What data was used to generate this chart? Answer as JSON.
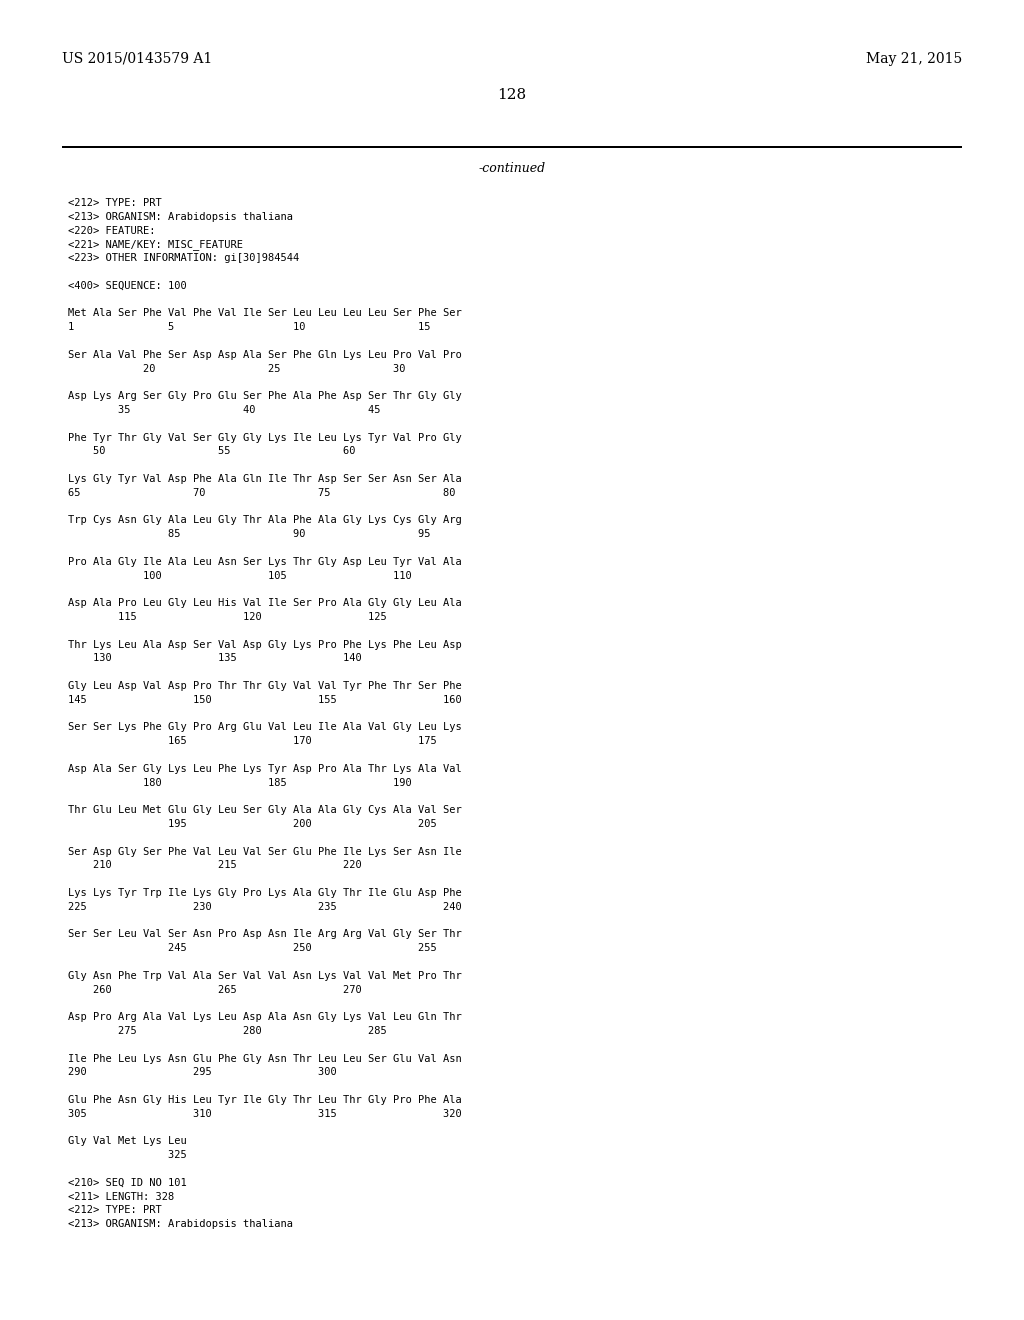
{
  "header_left": "US 2015/0143579 A1",
  "header_right": "May 21, 2015",
  "page_number": "128",
  "continued": "-continued",
  "background_color": "#ffffff",
  "text_color": "#000000",
  "mono_lines": [
    "<212> TYPE: PRT",
    "<213> ORGANISM: Arabidopsis thaliana",
    "<220> FEATURE:",
    "<221> NAME/KEY: MISC_FEATURE",
    "<223> OTHER INFORMATION: gi[30]984544",
    "",
    "<400> SEQUENCE: 100",
    "",
    "Met Ala Ser Phe Val Phe Val Ile Ser Leu Leu Leu Leu Ser Phe Ser",
    "1               5                   10                  15",
    "",
    "Ser Ala Val Phe Ser Asp Asp Ala Ser Phe Gln Lys Leu Pro Val Pro",
    "            20                  25                  30",
    "",
    "Asp Lys Arg Ser Gly Pro Glu Ser Phe Ala Phe Asp Ser Thr Gly Gly",
    "        35                  40                  45",
    "",
    "Phe Tyr Thr Gly Val Ser Gly Gly Lys Ile Leu Lys Tyr Val Pro Gly",
    "    50                  55                  60",
    "",
    "Lys Gly Tyr Val Asp Phe Ala Gln Ile Thr Asp Ser Ser Asn Ser Ala",
    "65                  70                  75                  80",
    "",
    "Trp Cys Asn Gly Ala Leu Gly Thr Ala Phe Ala Gly Lys Cys Gly Arg",
    "                85                  90                  95",
    "",
    "Pro Ala Gly Ile Ala Leu Asn Ser Lys Thr Gly Asp Leu Tyr Val Ala",
    "            100                 105                 110",
    "",
    "Asp Ala Pro Leu Gly Leu His Val Ile Ser Pro Ala Gly Gly Leu Ala",
    "        115                 120                 125",
    "",
    "Thr Lys Leu Ala Asp Ser Val Asp Gly Lys Pro Phe Lys Phe Leu Asp",
    "    130                 135                 140",
    "",
    "Gly Leu Asp Val Asp Pro Thr Thr Gly Val Val Tyr Phe Thr Ser Phe",
    "145                 150                 155                 160",
    "",
    "Ser Ser Lys Phe Gly Pro Arg Glu Val Leu Ile Ala Val Gly Leu Lys",
    "                165                 170                 175",
    "",
    "Asp Ala Ser Gly Lys Leu Phe Lys Tyr Asp Pro Ala Thr Lys Ala Val",
    "            180                 185                 190",
    "",
    "Thr Glu Leu Met Glu Gly Leu Ser Gly Ala Ala Gly Cys Ala Val Ser",
    "                195                 200                 205",
    "",
    "Ser Asp Gly Ser Phe Val Leu Val Ser Glu Phe Ile Lys Ser Asn Ile",
    "    210                 215                 220",
    "",
    "Lys Lys Tyr Trp Ile Lys Gly Pro Lys Ala Gly Thr Ile Glu Asp Phe",
    "225                 230                 235                 240",
    "",
    "Ser Ser Leu Val Ser Asn Pro Asp Asn Ile Arg Arg Val Gly Ser Thr",
    "                245                 250                 255",
    "",
    "Gly Asn Phe Trp Val Ala Ser Val Val Asn Lys Val Val Met Pro Thr",
    "    260                 265                 270",
    "",
    "Asp Pro Arg Ala Val Lys Leu Asp Ala Asn Gly Lys Val Leu Gln Thr",
    "        275                 280                 285",
    "",
    "Ile Phe Leu Lys Asn Glu Phe Gly Asn Thr Leu Leu Ser Glu Val Asn",
    "290                 295                 300",
    "",
    "Glu Phe Asn Gly His Leu Tyr Ile Gly Thr Leu Thr Gly Pro Phe Ala",
    "305                 310                 315                 320",
    "",
    "Gly Val Met Lys Leu",
    "                325",
    "",
    "<210> SEQ ID NO 101",
    "<211> LENGTH: 328",
    "<212> TYPE: PRT",
    "<213> ORGANISM: Arabidopsis thaliana"
  ]
}
